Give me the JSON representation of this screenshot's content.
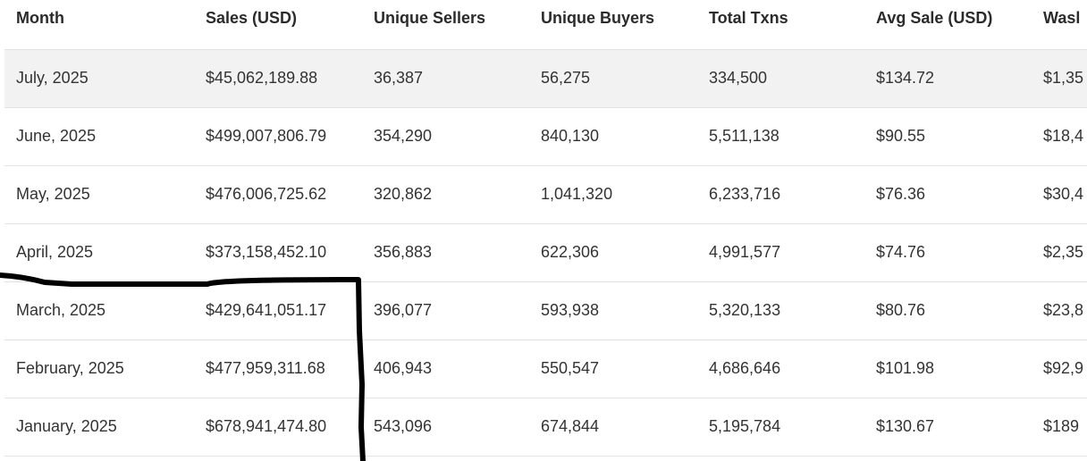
{
  "table": {
    "headers": [
      "Month",
      "Sales (USD)",
      "Unique Sellers",
      "Unique Buyers",
      "Total Txns",
      "Avg Sale (USD)",
      "Wasl"
    ],
    "rows": [
      [
        "July, 2025",
        "$45,062,189.88",
        "36,387",
        "56,275",
        "334,500",
        "$134.72",
        "$1,35"
      ],
      [
        "June, 2025",
        "$499,007,806.79",
        "354,290",
        "840,130",
        "5,511,138",
        "$90.55",
        "$18,4"
      ],
      [
        "May, 2025",
        "$476,006,725.62",
        "320,862",
        "1,041,320",
        "6,233,716",
        "$76.36",
        "$30,4"
      ],
      [
        "April, 2025",
        "$373,158,452.10",
        "356,883",
        "622,306",
        "4,991,577",
        "$74.76",
        "$2,35"
      ],
      [
        "March, 2025",
        "$429,641,051.17",
        "396,077",
        "593,938",
        "5,320,133",
        "$80.76",
        "$23,8"
      ],
      [
        "February, 2025",
        "$477,959,311.68",
        "406,943",
        "550,547",
        "4,686,646",
        "$101.98",
        "$92,9"
      ],
      [
        "January, 2025",
        "$678,941,474.80",
        "543,096",
        "674,844",
        "5,195,784",
        "$130.67",
        "$189"
      ]
    ]
  },
  "colors": {
    "striped_row": "#f2f2f2",
    "divider": "#e2e2e2",
    "annotation_stroke": "#000000"
  }
}
